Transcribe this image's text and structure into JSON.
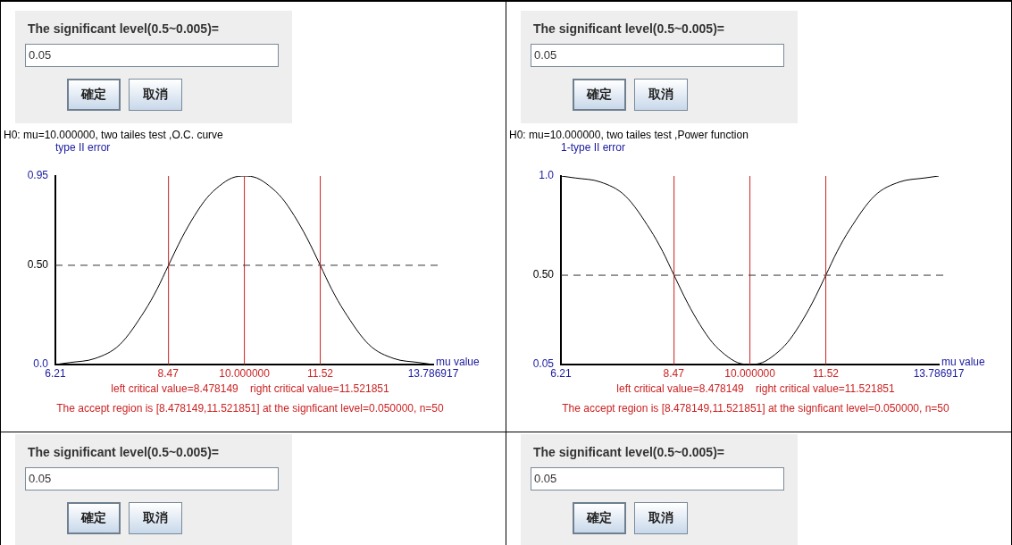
{
  "chart_data": [
    {
      "type": "line",
      "title": "H0: mu=10.000000,  two tailes test ,O.C. curve",
      "xlabel": "mu value",
      "ylabel": "type II error",
      "x": [
        6.21,
        6.5,
        7,
        7.5,
        8,
        8.25,
        8.478149,
        8.75,
        9,
        9.25,
        9.5,
        9.75,
        10,
        10.25,
        10.5,
        10.75,
        11,
        11.25,
        11.521851,
        11.75,
        12,
        12.5,
        13,
        13.5,
        13.786917
      ],
      "series": [
        {
          "color": "#000000",
          "values": [
            0,
            0.01,
            0.03,
            0.1,
            0.27,
            0.38,
            0.5,
            0.64,
            0.75,
            0.84,
            0.9,
            0.94,
            0.95,
            0.94,
            0.9,
            0.84,
            0.75,
            0.64,
            0.5,
            0.38,
            0.27,
            0.1,
            0.03,
            0.01,
            0
          ]
        }
      ],
      "xlim": [
        6.21,
        13.786917
      ],
      "xticks": [
        6.21,
        8.47,
        {
          "value": 10,
          "label": "10.000000"
        },
        11.52,
        13.786917
      ],
      "ylim": [
        0,
        0.95
      ],
      "yticks": [
        {
          "value": 0,
          "label": "0.0"
        },
        {
          "value": 0.5,
          "label": "0.50"
        },
        0.95
      ],
      "ref_lines": [
        {
          "axis": "x",
          "value": 8.478149,
          "color": "#cc2222"
        },
        {
          "axis": "x",
          "value": 10,
          "color": "#cc2222"
        },
        {
          "axis": "x",
          "value": 11.521851,
          "color": "#cc2222"
        },
        {
          "axis": "y",
          "value": 0.5,
          "color": "#333333",
          "line_style": "dashed"
        }
      ],
      "annotations": [
        "The significant level(0.5~0.005)=",
        "0.05",
        "確定",
        "取消",
        "left critical value=8.478149    right critical value=11.521851",
        "The accept region is [8.478149,11.521851] at the signficant level=0.050000, n=50"
      ]
    },
    {
      "type": "line",
      "title": "H0: mu=10.000000,  two tailes test ,Power function",
      "xlabel": "mu value",
      "ylabel": "1-type II error",
      "x": [
        6.21,
        6.5,
        7,
        7.5,
        8,
        8.25,
        8.478149,
        8.75,
        9,
        9.25,
        9.5,
        9.75,
        10,
        10.25,
        10.5,
        10.75,
        11,
        11.25,
        11.521851,
        11.75,
        12,
        12.5,
        13,
        13.5,
        13.786917
      ],
      "series": [
        {
          "color": "#000000",
          "values": [
            1,
            0.99,
            0.97,
            0.9,
            0.73,
            0.62,
            0.5,
            0.36,
            0.25,
            0.16,
            0.1,
            0.06,
            0.05,
            0.06,
            0.1,
            0.16,
            0.25,
            0.36,
            0.5,
            0.62,
            0.73,
            0.9,
            0.97,
            0.99,
            1
          ]
        }
      ],
      "xlim": [
        6.21,
        13.786917
      ],
      "xticks": [
        6.21,
        8.47,
        {
          "value": 10,
          "label": "10.000000"
        },
        11.52,
        13.786917
      ],
      "ylim": [
        0.05,
        1
      ],
      "yticks": [
        0.05,
        {
          "value": 0.5,
          "label": "0.50"
        },
        {
          "value": 1,
          "label": "1.0"
        }
      ],
      "ref_lines": [
        {
          "axis": "x",
          "value": 8.478149,
          "color": "#cc2222"
        },
        {
          "axis": "x",
          "value": 10,
          "color": "#cc2222"
        },
        {
          "axis": "x",
          "value": 11.521851,
          "color": "#cc2222"
        },
        {
          "axis": "y",
          "value": 0.5,
          "color": "#333333",
          "line_style": "dashed"
        }
      ],
      "annotations": [
        "The significant level(0.5~0.005)=",
        "0.05",
        "確定",
        "取消",
        "left critical value=8.478149    right critical value=11.521851",
        "The accept region is [8.478149,11.521851] at the signficant level=0.050000, n=50"
      ]
    },
    {
      "type": "other",
      "annotations": [
        "The significant level(0.5~0.005)=",
        "0.05",
        "確定",
        "取消"
      ]
    },
    {
      "type": "other",
      "annotations": [
        "The significant level(0.5~0.005)=",
        "0.05",
        "確定",
        "取消"
      ]
    }
  ]
}
